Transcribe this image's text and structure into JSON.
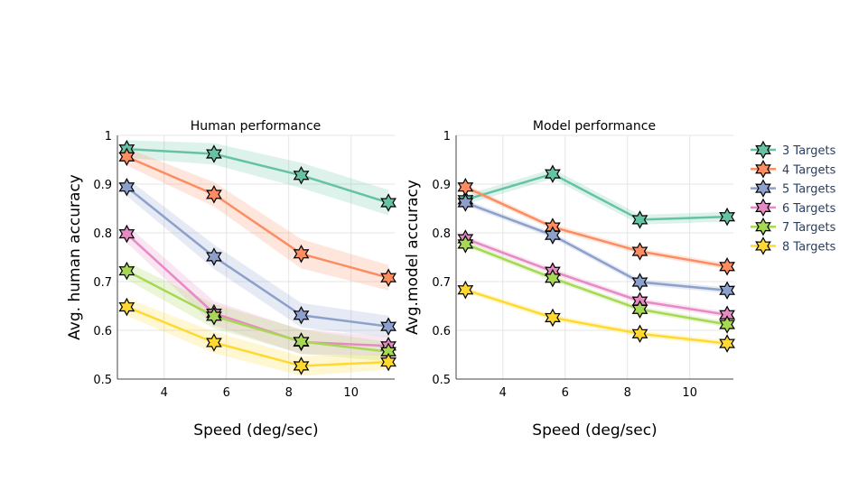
{
  "chart_data": [
    {
      "type": "line",
      "title": "Human performance",
      "xlabel": "Speed (deg/sec)",
      "ylabel": "Avg. human accuracy",
      "xlim": [
        2.5,
        11.4
      ],
      "ylim": [
        0.5,
        1.0
      ],
      "xticks": [
        4,
        6,
        8,
        10
      ],
      "yticks": [
        0.5,
        0.6,
        0.7,
        0.8,
        0.9,
        1.0
      ],
      "ytick_labels": [
        "0.5",
        "0.6",
        "0.7",
        "0.8",
        "0.9",
        "1"
      ],
      "x": [
        2.8,
        5.6,
        8.4,
        11.2
      ],
      "grid": true,
      "series": [
        {
          "name": "3 Targets",
          "color": "#66c2a5",
          "values": [
            0.972,
            0.962,
            0.918,
            0.862
          ],
          "band": [
            0.018,
            0.022,
            0.026,
            0.026
          ]
        },
        {
          "name": "4 Targets",
          "color": "#fc8d62",
          "values": [
            0.956,
            0.879,
            0.757,
            0.708
          ],
          "band": [
            0.018,
            0.025,
            0.03,
            0.026
          ]
        },
        {
          "name": "5 Targets",
          "color": "#8da0cb",
          "values": [
            0.894,
            0.751,
            0.631,
            0.608
          ],
          "band": [
            0.018,
            0.025,
            0.025,
            0.022
          ]
        },
        {
          "name": "6 Targets",
          "color": "#e78ac3",
          "values": [
            0.798,
            0.635,
            0.576,
            0.568
          ],
          "band": [
            0.018,
            0.025,
            0.025,
            0.02
          ]
        },
        {
          "name": "7 Targets",
          "color": "#a6d854",
          "values": [
            0.722,
            0.629,
            0.577,
            0.556
          ],
          "band": [
            0.018,
            0.025,
            0.025,
            0.02
          ]
        },
        {
          "name": "8 Targets",
          "color": "#ffd92f",
          "values": [
            0.648,
            0.575,
            0.527,
            0.535
          ],
          "band": [
            0.018,
            0.022,
            0.02,
            0.016
          ]
        }
      ]
    },
    {
      "type": "line",
      "title": "Model performance",
      "xlabel": "Speed (deg/sec)",
      "ylabel": "Avg.model accuracy",
      "xlim": [
        2.5,
        11.4
      ],
      "ylim": [
        0.5,
        1.0
      ],
      "xticks": [
        4,
        6,
        8,
        10
      ],
      "yticks": [
        0.5,
        0.6,
        0.7,
        0.8,
        0.9,
        1.0
      ],
      "ytick_labels": [
        "0.5",
        "0.6",
        "0.7",
        "0.8",
        "0.9",
        "1"
      ],
      "x": [
        2.8,
        5.6,
        8.4,
        11.2
      ],
      "grid": true,
      "series": [
        {
          "name": "3 Targets",
          "color": "#66c2a5",
          "values": [
            0.868,
            0.921,
            0.827,
            0.833
          ],
          "band": [
            0.01,
            0.01,
            0.01,
            0.01
          ]
        },
        {
          "name": "4 Targets",
          "color": "#fc8d62",
          "values": [
            0.894,
            0.812,
            0.762,
            0.731
          ],
          "band": [
            0.006,
            0.006,
            0.006,
            0.006
          ]
        },
        {
          "name": "5 Targets",
          "color": "#8da0cb",
          "values": [
            0.862,
            0.795,
            0.699,
            0.682
          ],
          "band": [
            0.006,
            0.006,
            0.006,
            0.006
          ]
        },
        {
          "name": "6 Targets",
          "color": "#e78ac3",
          "values": [
            0.788,
            0.721,
            0.66,
            0.632
          ],
          "band": [
            0.006,
            0.006,
            0.006,
            0.006
          ]
        },
        {
          "name": "7 Targets",
          "color": "#a6d854",
          "values": [
            0.777,
            0.707,
            0.643,
            0.612
          ],
          "band": [
            0.006,
            0.006,
            0.006,
            0.006
          ]
        },
        {
          "name": "8 Targets",
          "color": "#ffd92f",
          "values": [
            0.683,
            0.626,
            0.593,
            0.573
          ],
          "band": [
            0.006,
            0.006,
            0.006,
            0.006
          ]
        }
      ]
    }
  ],
  "legend": {
    "position": "right",
    "items": [
      "3 Targets",
      "4 Targets",
      "5 Targets",
      "6 Targets",
      "7 Targets",
      "8 Targets"
    ],
    "colors": [
      "#66c2a5",
      "#fc8d62",
      "#8da0cb",
      "#e78ac3",
      "#a6d854",
      "#ffd92f"
    ],
    "marker": "star"
  }
}
